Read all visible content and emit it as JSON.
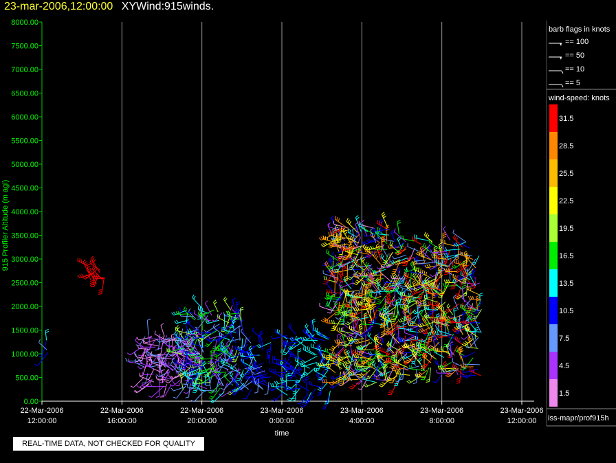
{
  "header": {
    "datetime": "23-mar-2006,12:00:00",
    "title": "XYWind:915winds."
  },
  "legend": {
    "barb_title": "barb flags in knots",
    "barbs": [
      {
        "label": "== 100",
        "value": 100
      },
      {
        "label": "== 50",
        "value": 50
      },
      {
        "label": "== 10",
        "value": 10
      },
      {
        "label": "== 5",
        "value": 5
      }
    ],
    "colorbar_title": "wind-speed: knots",
    "colorbar": [
      {
        "label": "31.5",
        "color": "#ff0000"
      },
      {
        "label": "28.5",
        "color": "#ff8800"
      },
      {
        "label": "25.5",
        "color": "#ffbb00"
      },
      {
        "label": "22.5",
        "color": "#ffff00"
      },
      {
        "label": "19.5",
        "color": "#aaff33"
      },
      {
        "label": "16.5",
        "color": "#00ee00"
      },
      {
        "label": "13.5",
        "color": "#00ffff"
      },
      {
        "label": "10.5",
        "color": "#0000ff"
      },
      {
        "label": "7.5",
        "color": "#6699ff"
      },
      {
        "label": "4.5",
        "color": "#aa33ff"
      },
      {
        "label": "1.5",
        "color": "#ee88ee"
      }
    ]
  },
  "status": {
    "source": "iss-mapr/prof915h",
    "quality_note": "REAL-TIME DATA, NOT CHECKED FOR QUALITY"
  },
  "chart_data": {
    "type": "scatter",
    "subtype": "wind-barbs",
    "xlabel": "time",
    "ylabel": "915 Profiler Altitude (m agl)",
    "ylim": [
      0,
      8000
    ],
    "xlim_hours": [
      0,
      24
    ],
    "grid": "vertical",
    "y_ticks": [
      "0.00",
      "500.00",
      "1000.00",
      "1500.00",
      "2000.00",
      "2500.00",
      "3000.00",
      "3500.00",
      "4000.00",
      "4500.00",
      "5000.00",
      "5500.00",
      "6000.00",
      "6500.00",
      "7000.00",
      "7500.00",
      "8000.00"
    ],
    "x_ticks": [
      {
        "date": "22-Mar-2006",
        "time": "12:00:00"
      },
      {
        "date": "22-Mar-2006",
        "time": "16:00:00"
      },
      {
        "date": "22-Mar-2006",
        "time": "20:00:00"
      },
      {
        "date": "23-Mar-2006",
        "time": "0:00:00"
      },
      {
        "date": "23-Mar-2006",
        "time": "4:00:00"
      },
      {
        "date": "23-Mar-2006",
        "time": "8:00:00"
      },
      {
        "date": "23-Mar-2006",
        "time": "12:00:00"
      }
    ],
    "clusters": [
      {
        "t": [
          0.2,
          0.5
        ],
        "alt": [
          950,
          1350
        ],
        "speed": [
          8,
          13
        ],
        "density": 4
      },
      {
        "t": [
          2.2,
          3.2
        ],
        "alt": [
          2450,
          2900
        ],
        "speed": [
          30,
          33
        ],
        "density": 14
      },
      {
        "t": [
          5.0,
          8.0
        ],
        "alt": [
          300,
          1400
        ],
        "speed": [
          1,
          8
        ],
        "density": 140
      },
      {
        "t": [
          7.0,
          10.0
        ],
        "alt": [
          200,
          1950
        ],
        "speed": [
          3,
          20
        ],
        "density": 200
      },
      {
        "t": [
          10.0,
          11.5
        ],
        "alt": [
          200,
          1400
        ],
        "speed": [
          8,
          13
        ],
        "density": 55
      },
      {
        "t": [
          12.0,
          14.5
        ],
        "alt": [
          100,
          1500
        ],
        "speed": [
          9,
          15
        ],
        "density": 90
      },
      {
        "t": [
          14.5,
          18.0
        ],
        "alt": [
          400,
          3700
        ],
        "speed": [
          2,
          33
        ],
        "density": 420
      },
      {
        "t": [
          18.0,
          22.0
        ],
        "alt": [
          500,
          3400
        ],
        "speed": [
          2,
          33
        ],
        "density": 380
      }
    ]
  }
}
